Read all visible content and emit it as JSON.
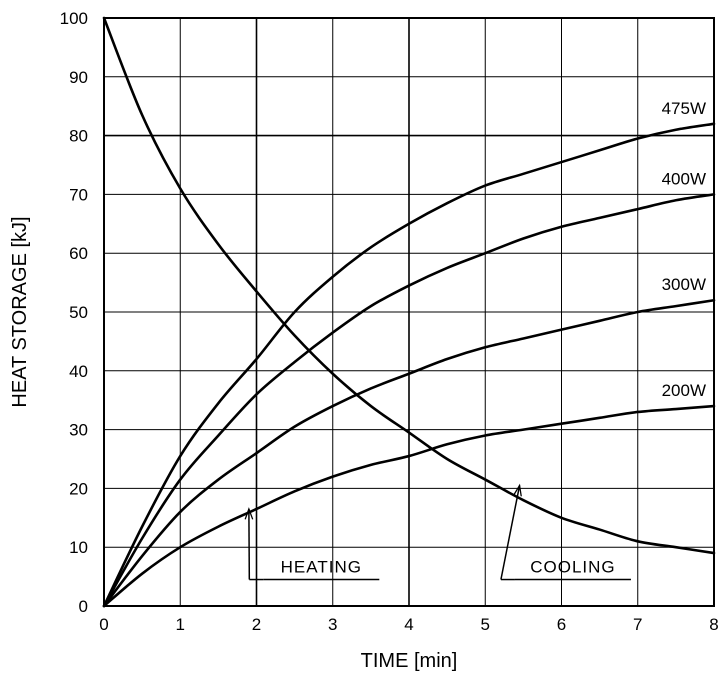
{
  "chart_data": {
    "type": "line",
    "title": "",
    "xlabel": "TIME   [min]",
    "ylabel": "HEAT STORAGE   [kJ]",
    "xlim": [
      0,
      8
    ],
    "ylim": [
      0,
      100
    ],
    "xticks": [
      "0",
      "1",
      "2",
      "3",
      "4",
      "5",
      "6",
      "7",
      "8"
    ],
    "yticks": [
      "0",
      "10",
      "20",
      "30",
      "40",
      "50",
      "60",
      "70",
      "80",
      "90",
      "100"
    ],
    "grid": true,
    "legend": "none",
    "series": [
      {
        "name": "475W",
        "x": [
          0,
          0.5,
          1,
          1.5,
          2,
          2.5,
          3,
          3.5,
          4,
          4.5,
          5,
          5.5,
          6,
          6.5,
          7,
          7.5,
          8
        ],
        "y": [
          0,
          13.5,
          25.5,
          34.5,
          42,
          50,
          56,
          61,
          65,
          68.5,
          71.5,
          73.5,
          75.5,
          77.5,
          79.5,
          81,
          82
        ]
      },
      {
        "name": "400W",
        "x": [
          0,
          0.5,
          1,
          1.5,
          2,
          2.5,
          3,
          3.5,
          4,
          4.5,
          5,
          5.5,
          6,
          6.5,
          7,
          7.5,
          8
        ],
        "y": [
          0,
          11.5,
          21.5,
          29,
          36,
          41.5,
          46.5,
          51,
          54.5,
          57.5,
          60,
          62.5,
          64.5,
          66,
          67.5,
          69,
          70
        ]
      },
      {
        "name": "300W",
        "x": [
          0,
          0.5,
          1,
          1.5,
          2,
          2.5,
          3,
          3.5,
          4,
          4.5,
          5,
          5.5,
          6,
          6.5,
          7,
          7.5,
          8
        ],
        "y": [
          0,
          8.5,
          16,
          21.5,
          26,
          30.5,
          34,
          37,
          39.5,
          42,
          44,
          45.5,
          47,
          48.5,
          50,
          51,
          52
        ]
      },
      {
        "name": "200W",
        "x": [
          0,
          0.5,
          1,
          1.5,
          2,
          2.5,
          3,
          3.5,
          4,
          4.5,
          5,
          5.5,
          6,
          6.5,
          7,
          7.5,
          8
        ],
        "y": [
          0,
          5.5,
          10,
          13.5,
          16.5,
          19.5,
          22,
          24,
          25.5,
          27.5,
          29,
          30,
          31,
          32,
          33,
          33.5,
          34
        ]
      },
      {
        "name": "",
        "x": [
          0,
          0.5,
          1,
          1.5,
          2,
          2.5,
          3,
          3.5,
          4,
          4.5,
          5,
          5.5,
          6,
          6.5,
          7,
          7.5,
          8
        ],
        "y": [
          100,
          83.5,
          71,
          61.5,
          53.5,
          46,
          39.5,
          34,
          29.5,
          25,
          21.5,
          18,
          15,
          13,
          11,
          10,
          9
        ]
      }
    ],
    "annotations": [
      {
        "text": "HEATING",
        "x": 2.85,
        "y": 4.5,
        "arrow_to": [
          1.9,
          16.5
        ]
      },
      {
        "text": "COOLING",
        "x": 6.15,
        "y": 4.5,
        "arrow_to": [
          5.45,
          20.5
        ]
      }
    ]
  }
}
